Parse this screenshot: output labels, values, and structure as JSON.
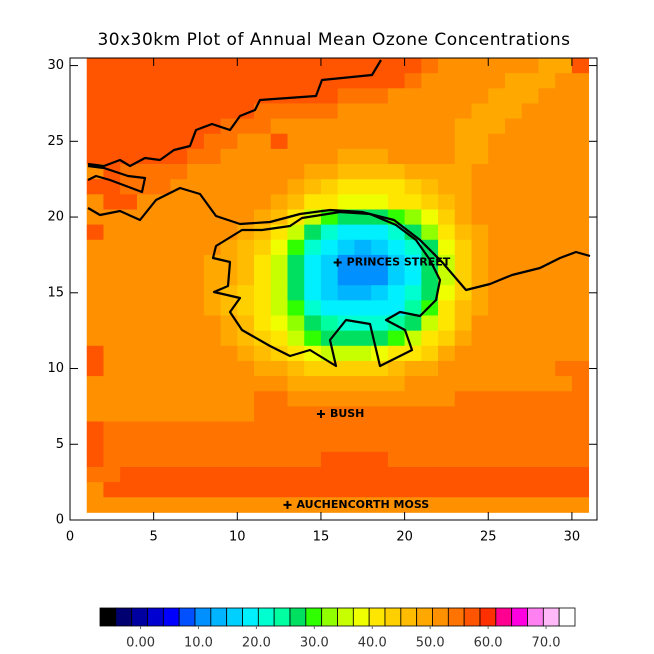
{
  "chart_data": {
    "type": "heatmap",
    "title": "30x30km Plot of Annual Mean Ozone Concentrations",
    "xlim": [
      0,
      31.5
    ],
    "ylim": [
      0,
      30.5
    ],
    "xticks": [
      0,
      5,
      10,
      15,
      20,
      25,
      30
    ],
    "yticks": [
      0,
      5,
      10,
      15,
      20,
      25,
      30
    ],
    "x": [
      1.5,
      2.5,
      3.5,
      4.5,
      5.5,
      6.5,
      7.5,
      8.5,
      9.5,
      10.5,
      11.5,
      12.5,
      13.5,
      14.5,
      15.5,
      16.5,
      17.5,
      18.5,
      19.5,
      20.5,
      21.5,
      22.5,
      23.5,
      24.5,
      25.5,
      26.5,
      27.5,
      28.5,
      29.5,
      30.5
    ],
    "y": [
      30,
      29,
      28,
      27,
      26,
      25,
      24,
      23,
      22,
      21,
      20,
      19,
      18,
      17,
      16,
      15,
      14,
      13,
      12,
      11,
      10,
      9,
      8,
      7,
      6,
      5,
      4,
      3,
      2,
      1
    ],
    "z": [
      [
        56,
        56,
        56,
        56,
        56,
        56,
        56,
        56,
        56,
        56,
        56,
        56,
        56,
        56,
        56,
        56,
        56,
        56,
        56,
        56,
        54,
        51,
        51,
        51,
        51,
        51,
        51,
        48,
        48,
        56
      ],
      [
        56,
        56,
        56,
        56,
        56,
        56,
        56,
        56,
        56,
        56,
        56,
        56,
        56,
        56,
        56,
        56,
        56,
        56,
        56,
        54,
        51,
        51,
        51,
        51,
        51,
        48,
        48,
        48,
        51,
        51
      ],
      [
        56,
        56,
        56,
        56,
        56,
        56,
        56,
        56,
        56,
        56,
        56,
        56,
        56,
        56,
        56,
        54,
        54,
        54,
        51,
        51,
        51,
        51,
        51,
        51,
        48,
        48,
        48,
        51,
        51,
        51
      ],
      [
        56,
        56,
        56,
        56,
        56,
        56,
        56,
        56,
        56,
        56,
        54,
        54,
        54,
        54,
        54,
        51,
        51,
        51,
        51,
        51,
        51,
        51,
        51,
        48,
        48,
        48,
        51,
        51,
        51,
        51
      ],
      [
        56,
        56,
        56,
        56,
        56,
        56,
        56,
        56,
        54,
        54,
        54,
        51,
        51,
        51,
        51,
        51,
        51,
        51,
        51,
        51,
        51,
        51,
        48,
        48,
        48,
        51,
        51,
        51,
        51,
        51
      ],
      [
        56,
        56,
        56,
        56,
        56,
        56,
        56,
        54,
        54,
        51,
        51,
        56,
        51,
        51,
        51,
        51,
        51,
        51,
        51,
        51,
        51,
        51,
        48,
        48,
        51,
        51,
        51,
        51,
        51,
        51
      ],
      [
        56,
        56,
        56,
        56,
        56,
        56,
        54,
        54,
        51,
        51,
        51,
        51,
        51,
        51,
        51,
        48,
        48,
        48,
        51,
        51,
        51,
        51,
        48,
        48,
        51,
        51,
        51,
        51,
        51,
        51
      ],
      [
        51,
        56,
        54,
        54,
        54,
        54,
        51,
        51,
        51,
        51,
        51,
        51,
        51,
        48,
        48,
        46,
        46,
        46,
        46,
        48,
        48,
        48,
        48,
        51,
        51,
        51,
        51,
        51,
        51,
        51
      ],
      [
        56,
        56,
        54,
        54,
        54,
        51,
        51,
        51,
        51,
        51,
        51,
        51,
        48,
        46,
        44,
        42,
        42,
        42,
        42,
        44,
        46,
        48,
        48,
        51,
        51,
        51,
        51,
        51,
        51,
        51
      ],
      [
        51,
        56,
        56,
        51,
        51,
        51,
        51,
        51,
        51,
        51,
        51,
        48,
        46,
        42,
        40,
        38,
        38,
        38,
        40,
        42,
        44,
        46,
        48,
        51,
        51,
        51,
        51,
        51,
        51,
        51
      ],
      [
        51,
        51,
        51,
        51,
        51,
        51,
        51,
        51,
        51,
        51,
        48,
        46,
        42,
        36,
        30,
        28,
        28,
        28,
        30,
        32,
        38,
        44,
        48,
        51,
        51,
        51,
        51,
        51,
        51,
        51
      ],
      [
        56,
        51,
        51,
        51,
        51,
        51,
        51,
        51,
        51,
        48,
        46,
        42,
        36,
        28,
        22,
        20,
        20,
        20,
        22,
        26,
        32,
        40,
        46,
        48,
        51,
        51,
        51,
        51,
        51,
        51
      ],
      [
        51,
        51,
        51,
        51,
        51,
        51,
        51,
        51,
        48,
        46,
        44,
        38,
        30,
        22,
        18,
        15,
        14,
        15,
        18,
        22,
        28,
        38,
        44,
        48,
        51,
        51,
        51,
        51,
        51,
        51
      ],
      [
        51,
        51,
        51,
        51,
        51,
        51,
        51,
        48,
        48,
        46,
        42,
        36,
        28,
        20,
        15,
        12,
        12,
        12,
        15,
        20,
        26,
        36,
        44,
        48,
        51,
        51,
        51,
        51,
        51,
        51
      ],
      [
        51,
        51,
        51,
        51,
        51,
        51,
        51,
        48,
        48,
        46,
        42,
        36,
        28,
        20,
        15,
        12,
        11,
        12,
        15,
        20,
        26,
        36,
        44,
        48,
        51,
        51,
        51,
        51,
        51,
        51
      ],
      [
        51,
        51,
        51,
        51,
        51,
        51,
        51,
        48,
        46,
        44,
        40,
        34,
        28,
        20,
        16,
        14,
        14,
        15,
        18,
        22,
        28,
        38,
        44,
        48,
        51,
        51,
        51,
        51,
        51,
        51
      ],
      [
        51,
        51,
        51,
        51,
        51,
        51,
        51,
        48,
        46,
        44,
        40,
        36,
        30,
        22,
        18,
        18,
        18,
        18,
        20,
        24,
        30,
        40,
        46,
        48,
        51,
        51,
        51,
        51,
        51,
        51
      ],
      [
        51,
        51,
        51,
        51,
        51,
        51,
        51,
        51,
        48,
        46,
        42,
        38,
        32,
        28,
        24,
        22,
        22,
        22,
        24,
        28,
        34,
        42,
        46,
        51,
        51,
        51,
        51,
        51,
        51,
        51
      ],
      [
        51,
        51,
        51,
        51,
        51,
        51,
        51,
        51,
        48,
        46,
        44,
        40,
        36,
        30,
        28,
        28,
        28,
        28,
        30,
        34,
        40,
        44,
        48,
        51,
        51,
        51,
        51,
        51,
        51,
        51
      ],
      [
        56,
        51,
        51,
        51,
        51,
        51,
        51,
        51,
        51,
        48,
        46,
        44,
        40,
        38,
        36,
        36,
        36,
        38,
        40,
        42,
        44,
        48,
        51,
        51,
        51,
        51,
        51,
        51,
        51,
        51
      ],
      [
        56,
        51,
        51,
        51,
        51,
        51,
        51,
        51,
        51,
        51,
        48,
        48,
        46,
        44,
        44,
        44,
        44,
        44,
        46,
        48,
        48,
        51,
        51,
        51,
        51,
        51,
        51,
        51,
        54,
        54
      ],
      [
        51,
        51,
        51,
        51,
        51,
        51,
        51,
        51,
        51,
        51,
        51,
        51,
        48,
        48,
        48,
        48,
        48,
        48,
        48,
        51,
        51,
        51,
        51,
        51,
        51,
        51,
        51,
        51,
        51,
        54
      ],
      [
        51,
        51,
        51,
        51,
        51,
        51,
        51,
        51,
        51,
        51,
        54,
        54,
        51,
        51,
        51,
        51,
        51,
        51,
        51,
        51,
        51,
        51,
        54,
        54,
        54,
        54,
        54,
        54,
        54,
        54
      ],
      [
        51,
        51,
        51,
        51,
        51,
        51,
        51,
        51,
        51,
        51,
        54,
        54,
        54,
        54,
        54,
        54,
        54,
        54,
        54,
        54,
        54,
        54,
        54,
        54,
        54,
        54,
        54,
        54,
        54,
        54
      ],
      [
        56,
        54,
        54,
        54,
        54,
        54,
        54,
        54,
        54,
        54,
        54,
        54,
        54,
        54,
        54,
        54,
        54,
        54,
        54,
        54,
        54,
        54,
        54,
        54,
        54,
        54,
        54,
        54,
        54,
        54
      ],
      [
        56,
        54,
        54,
        54,
        54,
        54,
        54,
        54,
        54,
        54,
        54,
        54,
        54,
        54,
        54,
        54,
        54,
        54,
        54,
        54,
        54,
        54,
        54,
        54,
        54,
        54,
        54,
        54,
        54,
        54
      ],
      [
        56,
        54,
        54,
        54,
        54,
        54,
        54,
        54,
        54,
        54,
        54,
        54,
        54,
        54,
        56,
        56,
        56,
        56,
        54,
        54,
        54,
        54,
        54,
        54,
        54,
        54,
        54,
        54,
        54,
        54
      ],
      [
        54,
        54,
        56,
        56,
        56,
        56,
        56,
        56,
        56,
        56,
        56,
        56,
        56,
        56,
        56,
        56,
        56,
        56,
        56,
        56,
        56,
        56,
        56,
        56,
        56,
        56,
        56,
        56,
        56,
        56
      ],
      [
        51,
        56,
        56,
        56,
        56,
        56,
        56,
        56,
        56,
        56,
        56,
        56,
        56,
        56,
        56,
        56,
        56,
        56,
        56,
        56,
        56,
        56,
        56,
        56,
        56,
        56,
        56,
        56,
        56,
        56
      ],
      [
        51,
        51,
        51,
        51,
        51,
        51,
        51,
        51,
        51,
        51,
        51,
        51,
        51,
        51,
        51,
        51,
        51,
        51,
        51,
        51,
        51,
        51,
        51,
        51,
        51,
        51,
        51,
        51,
        51,
        51
      ]
    ],
    "sites": [
      {
        "label": "PRINCES STREET",
        "x": 16,
        "y": 17
      },
      {
        "label": "BUSH",
        "x": 15,
        "y": 7
      },
      {
        "label": "AUCHENCORTH MOSS",
        "x": 13,
        "y": 1
      }
    ],
    "colorbar": {
      "lim": [
        -7,
        75
      ],
      "colors": [
        "#000000",
        "#000070",
        "#0000a0",
        "#0000d0",
        "#0000ff",
        "#0050ff",
        "#0090ff",
        "#00b4ff",
        "#00d0ff",
        "#00f0ff",
        "#00ffd0",
        "#00ffa0",
        "#00e060",
        "#30ff00",
        "#90ff00",
        "#c8ff00",
        "#f0ff00",
        "#ffe600",
        "#ffd000",
        "#ffbc00",
        "#ffa800",
        "#ff9000",
        "#ff7400",
        "#ff5400",
        "#ff3000",
        "#ff0090",
        "#ff00e0",
        "#ff80f0",
        "#ffb8f8",
        "#ffffff"
      ],
      "ticks": [
        {
          "value": 0,
          "label": "0.00"
        },
        {
          "value": 10,
          "label": "10.0"
        },
        {
          "value": 20,
          "label": "20.0"
        },
        {
          "value": 30,
          "label": "30.0"
        },
        {
          "value": 40,
          "label": "40.0"
        },
        {
          "value": 50,
          "label": "50.0"
        },
        {
          "value": 60,
          "label": "60.0"
        },
        {
          "value": 70,
          "label": "70.0"
        }
      ]
    }
  }
}
